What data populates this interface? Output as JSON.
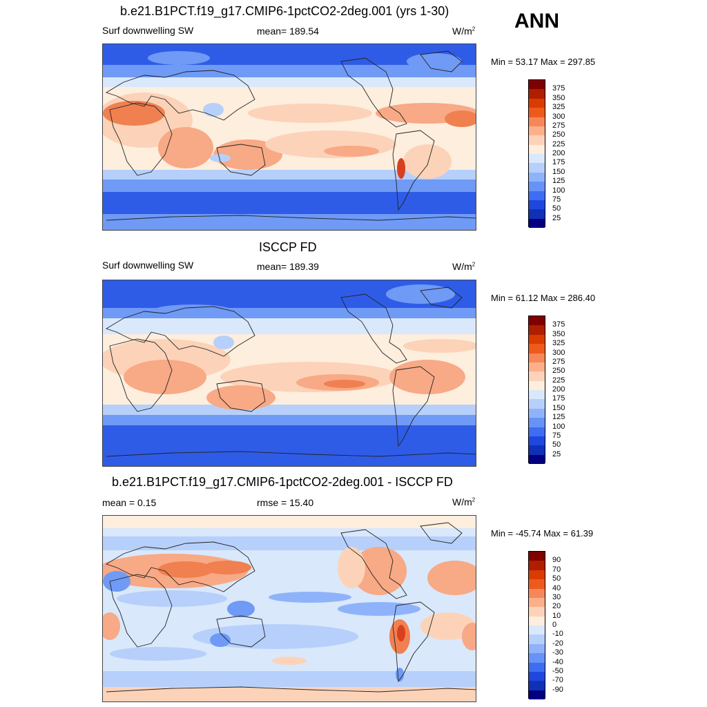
{
  "season": "ANN",
  "panels": [
    {
      "title": "b.e21.B1PCT.f19_g17.CMIP6-1pctCO2-2deg.001 (yrs 1-30)",
      "left_label": "Surf downwelling SW",
      "center_label": "mean= 189.54",
      "units_base": "W/m",
      "units_exp": "2",
      "minmax": "Min =  53.17 Max = 297.85"
    },
    {
      "title": "ISCCP FD",
      "left_label": "Surf downwelling SW",
      "center_label": "mean= 189.39",
      "units_base": "W/m",
      "units_exp": "2",
      "minmax": "Min =  61.12 Max = 286.40"
    },
    {
      "title": "b.e21.B1PCT.f19_g17.CMIP6-1pctCO2-2deg.001 - ISCCP FD",
      "left_label": "mean =   0.15",
      "center_label": "rmse =  15.40",
      "units_base": "W/m",
      "units_exp": "2",
      "minmax": "Min = -45.74 Max =  61.39"
    }
  ],
  "colorbar_abs": {
    "ticks": [
      "375",
      "350",
      "325",
      "300",
      "275",
      "250",
      "225",
      "200",
      "175",
      "150",
      "125",
      "100",
      "75",
      "50",
      "25"
    ],
    "colors": [
      "#800000",
      "#b01e00",
      "#d93b00",
      "#ee5a1e",
      "#f6875a",
      "#fbb08a",
      "#fcd3b8",
      "#fdeede",
      "#d9e8fb",
      "#b6d0fb",
      "#8fb3fa",
      "#6792f7",
      "#3e6df2",
      "#1f47e0",
      "#1030b8",
      "#000080"
    ]
  },
  "colorbar_diff": {
    "ticks": [
      "90",
      "70",
      "50",
      "40",
      "30",
      "20",
      "10",
      "0",
      "-10",
      "-20",
      "-30",
      "-40",
      "-50",
      "-70",
      "-90"
    ],
    "colors": [
      "#800000",
      "#b01e00",
      "#d93b00",
      "#ee5a1e",
      "#f6875a",
      "#fbb08a",
      "#fcd3b8",
      "#fdeede",
      "#d9e8fb",
      "#b6d0fb",
      "#8fb3fa",
      "#6792f7",
      "#3e6df2",
      "#1f47e0",
      "#1030b8",
      "#000080"
    ]
  },
  "map_colors": {
    "deep_blue": "#2f5ce6",
    "mid_blue": "#6f9af5",
    "light_blue": "#b6d0fb",
    "pale_blue": "#d9e8fb",
    "cream": "#fdeede",
    "peach": "#fcd3b8",
    "salmon": "#f8a985",
    "orange": "#f08050",
    "red": "#d94020",
    "coast": "#222222"
  }
}
